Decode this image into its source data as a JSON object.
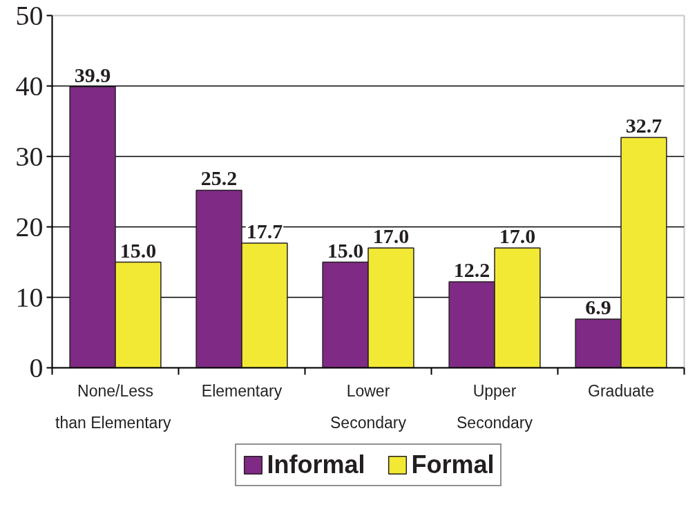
{
  "chart_data": {
    "type": "bar",
    "categories": [
      "None/Less\nthan  Elementary",
      "Elementary",
      "Lower\nSecondary",
      "Upper\nSecondary",
      "Graduate"
    ],
    "series": [
      {
        "name": "Informal",
        "color": "#7f2a85",
        "values": [
          39.9,
          25.2,
          15.0,
          12.2,
          6.9
        ],
        "value_labels": [
          "39.9",
          "25.2",
          "15.0",
          "12.2",
          "6.9"
        ]
      },
      {
        "name": "Formal",
        "color": "#f2e935",
        "values": [
          15.0,
          17.7,
          17.0,
          17.0,
          32.7
        ],
        "value_labels": [
          "15.0",
          "17.7",
          "17.0",
          "17.0",
          "32.7"
        ]
      }
    ],
    "ylim": [
      0,
      50
    ],
    "yticks": [
      0,
      10,
      20,
      30,
      40,
      50
    ],
    "grid": "y",
    "legend": "bottom"
  }
}
